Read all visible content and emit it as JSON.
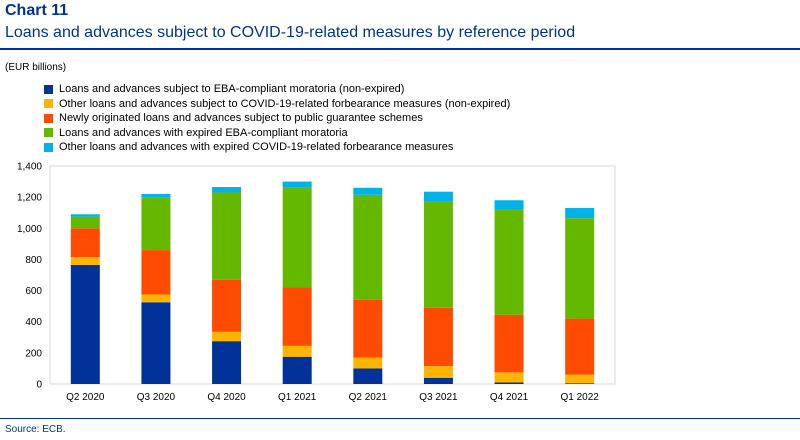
{
  "header": {
    "chart_number": "Chart 11",
    "title": "Loans and advances subject to COVID-19-related measures by reference period"
  },
  "unit_label": "(EUR billions)",
  "source": "Source: ECB.",
  "chart_data": {
    "type": "bar",
    "stacked": true,
    "categories": [
      "Q2 2020",
      "Q3 2020",
      "Q4 2020",
      "Q1 2021",
      "Q2 2021",
      "Q3 2021",
      "Q4 2021",
      "Q1 2022"
    ],
    "ylim": [
      0,
      1400
    ],
    "yticks": [
      0,
      200,
      400,
      600,
      800,
      1000,
      1200,
      1400
    ],
    "ytick_labels": [
      "0",
      "200",
      "400",
      "600",
      "800",
      "1,000",
      "1,200",
      "1,400"
    ],
    "grid": false,
    "legend_position": "top-left",
    "series": [
      {
        "name": "Loans and advances subject to EBA-compliant moratoria (non-expired)",
        "color": "#003299",
        "values": [
          765,
          525,
          275,
          175,
          100,
          40,
          10,
          5
        ]
      },
      {
        "name": "Other loans and advances subject to COVID-19-related forbearance measures (non-expired)",
        "color": "#ffb400",
        "values": [
          50,
          50,
          60,
          70,
          70,
          75,
          65,
          55
        ]
      },
      {
        "name": "Newly originated loans and advances subject to public guarantee schemes",
        "color": "#ff4b00",
        "values": [
          185,
          285,
          335,
          375,
          370,
          375,
          370,
          360
        ]
      },
      {
        "name": "Loans and advances with expired EBA-compliant moratoria",
        "color": "#65b800",
        "values": [
          75,
          340,
          560,
          640,
          675,
          685,
          675,
          645
        ]
      },
      {
        "name": "Other loans and advances with expired COVID-19-related forbearance measures",
        "color": "#00b1ea",
        "values": [
          15,
          20,
          35,
          40,
          45,
          60,
          60,
          65
        ]
      }
    ]
  }
}
